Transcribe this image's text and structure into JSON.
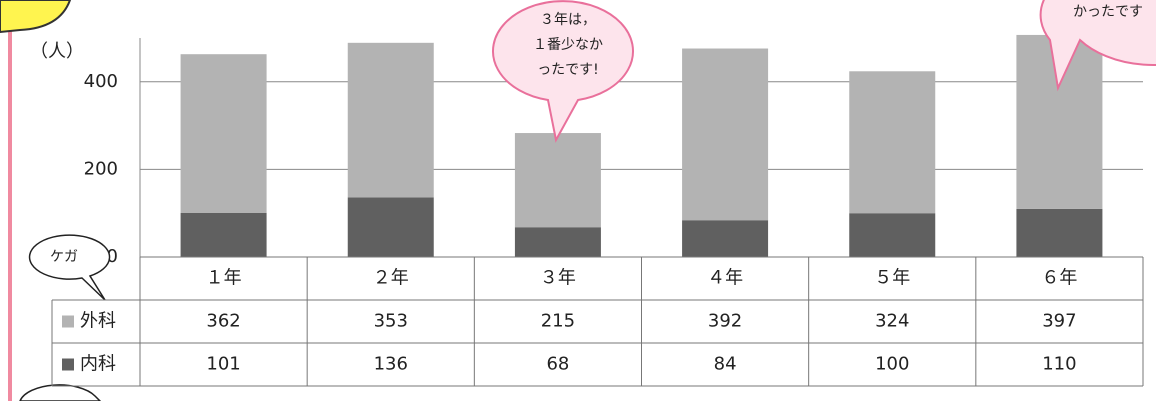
{
  "chart_data": {
    "type": "stacked_bar",
    "y_label": "（人）",
    "categories": [
      "１年",
      "２年",
      "３年",
      "４年",
      "５年",
      "６年"
    ],
    "series": [
      {
        "name": "内科",
        "color": "#606060",
        "values": [
          101,
          136,
          68,
          84,
          100,
          110
        ]
      },
      {
        "name": "外科",
        "color": "#b3b3b3",
        "values": [
          362,
          353,
          215,
          392,
          324,
          397
        ]
      }
    ],
    "ylim": [
      0,
      500
    ],
    "yticks": [
      0,
      200,
      400
    ],
    "grid": true,
    "annotations": [
      {
        "lines": [
          "３年は，",
          "１番少なか",
          "ったです!"
        ]
      },
      {
        "lines": [
          "かったです"
        ]
      },
      {
        "lines": [
          "ケガ"
        ]
      }
    ]
  }
}
